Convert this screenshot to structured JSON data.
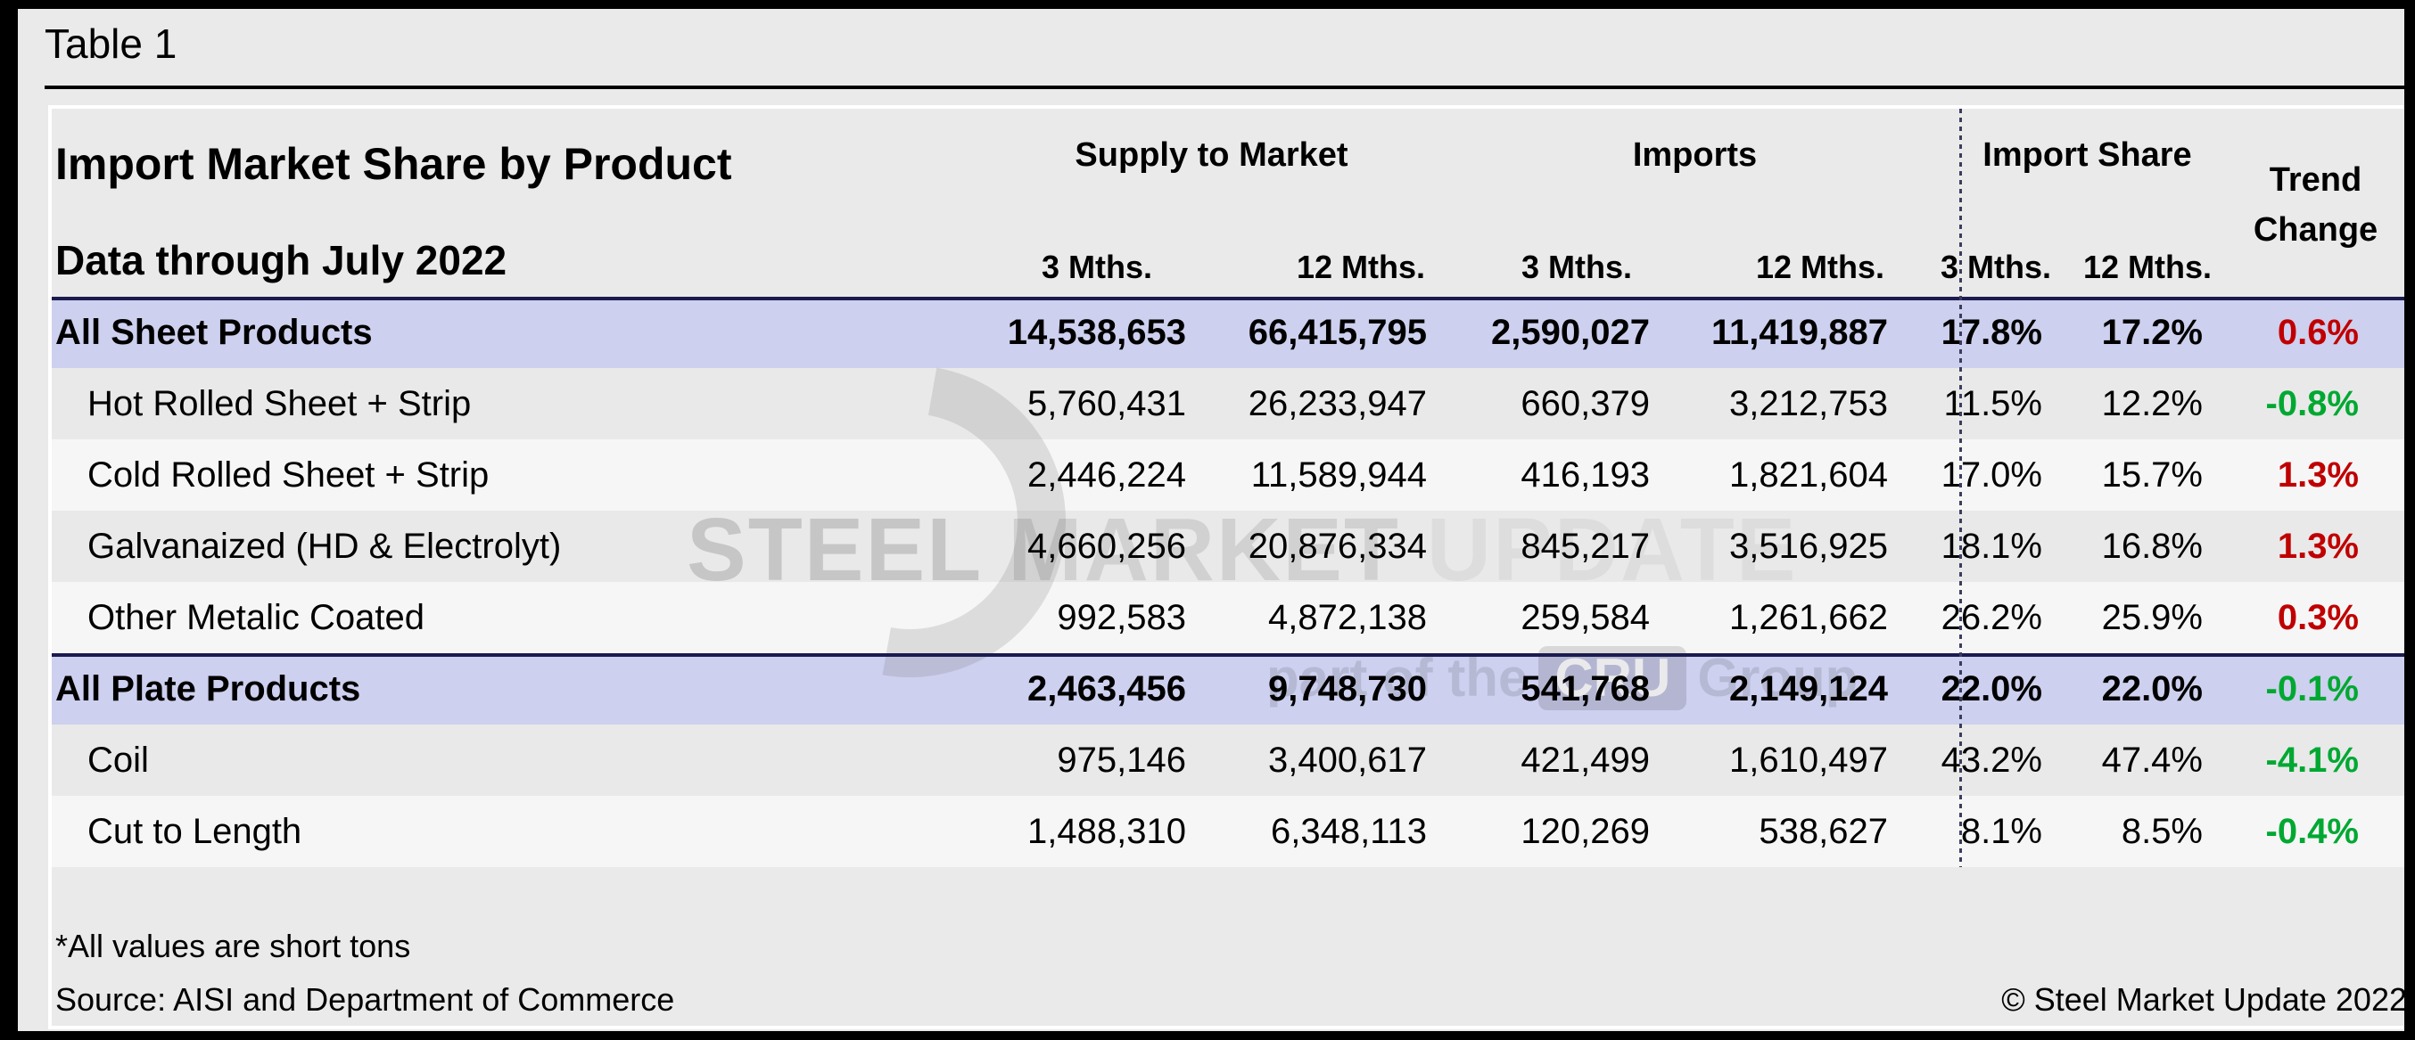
{
  "page": {
    "label": "Table 1"
  },
  "table": {
    "title": "Import Market Share by Product",
    "subtitle": "Data through July 2022",
    "groups": {
      "supply": "Supply to Market",
      "imports": "Imports",
      "share": "Import Share",
      "trend": "Trend Change"
    },
    "subheaders": [
      "3 Mths.",
      "12 Mths.",
      "3 Mths.",
      "12 Mths.",
      "3 Mths.",
      "12 Mths."
    ],
    "rows": [
      {
        "label": "All Sheet Products",
        "emphasis": true,
        "band": "lavender",
        "s3": "14,538,653",
        "s12": "66,415,795",
        "i3": "2,590,027",
        "i12": "11,419,887",
        "sh3": "17.8%",
        "sh12": "17.2%",
        "trend": "0.6%",
        "trend_color": "red"
      },
      {
        "label": "Hot Rolled Sheet + Strip",
        "emphasis": false,
        "band": "gray",
        "s3": "5,760,431",
        "s12": "26,233,947",
        "i3": "660,379",
        "i12": "3,212,753",
        "sh3": "11.5%",
        "sh12": "12.2%",
        "trend": "-0.8%",
        "trend_color": "green"
      },
      {
        "label": "Cold Rolled Sheet + Strip",
        "emphasis": false,
        "band": "white",
        "s3": "2,446,224",
        "s12": "11,589,944",
        "i3": "416,193",
        "i12": "1,821,604",
        "sh3": "17.0%",
        "sh12": "15.7%",
        "trend": "1.3%",
        "trend_color": "red"
      },
      {
        "label": "Galvanaized (HD & Electrolyt)",
        "emphasis": false,
        "band": "gray",
        "s3": "4,660,256",
        "s12": "20,876,334",
        "i3": "845,217",
        "i12": "3,516,925",
        "sh3": "18.1%",
        "sh12": "16.8%",
        "trend": "1.3%",
        "trend_color": "red"
      },
      {
        "label": "Other Metalic Coated",
        "emphasis": false,
        "band": "white",
        "s3": "992,583",
        "s12": "4,872,138",
        "i3": "259,584",
        "i12": "1,261,662",
        "sh3": "26.2%",
        "sh12": "25.9%",
        "trend": "0.3%",
        "trend_color": "red"
      },
      {
        "label": "All Plate Products",
        "emphasis": true,
        "band": "lavender",
        "s3": "2,463,456",
        "s12": "9,748,730",
        "i3": "541,768",
        "i12": "2,149,124",
        "sh3": "22.0%",
        "sh12": "22.0%",
        "trend": "-0.1%",
        "trend_color": "green"
      },
      {
        "label": "Coil",
        "emphasis": false,
        "band": "gray",
        "s3": "975,146",
        "s12": "3,400,617",
        "i3": "421,499",
        "i12": "1,610,497",
        "sh3": "43.2%",
        "sh12": "47.4%",
        "trend": "-4.1%",
        "trend_color": "green"
      },
      {
        "label": "Cut to Length",
        "emphasis": false,
        "band": "white",
        "s3": "1,488,310",
        "s12": "6,348,113",
        "i3": "120,269",
        "i12": "538,627",
        "sh3": "8.1%",
        "sh12": "8.5%",
        "trend": "-0.4%",
        "trend_color": "green"
      }
    ],
    "footnote": "*All values are short tons",
    "source": "Source: AISI and Department of Commerce",
    "copyright": "© Steel Market Update 2022"
  },
  "watermark": {
    "word1": "STEEL",
    "word2": "MARKET",
    "word3": "UPDATE",
    "part": "part of the",
    "cru": "CRU",
    "group": "Group"
  },
  "colors": {
    "band_lavender": "#cdd0ee",
    "band_gray": "#e9e9e9",
    "band_white": "#f6f6f6",
    "navy_rule": "#1b1b4f",
    "trend_red": "#c00000",
    "trend_green": "#00a832",
    "background": "#eaeaea"
  }
}
